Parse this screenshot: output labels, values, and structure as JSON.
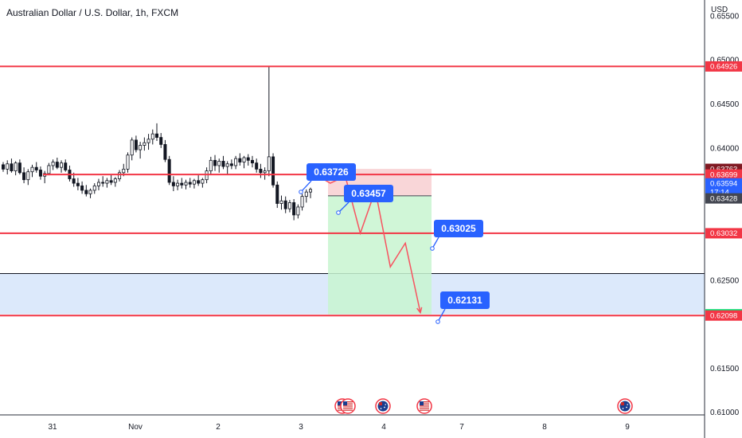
{
  "chart_data": {
    "type": "candlestick",
    "title": "Australian Dollar / U.S. Dollar, 1h, FXCM",
    "currency": "USD",
    "ylim": [
      0.6097,
      0.6568
    ],
    "y_ticks": [
      "0.65500",
      "0.65000",
      "0.64500",
      "0.64000",
      "0.62500",
      "0.61500",
      "0.61000"
    ],
    "x_ticks": [
      "31",
      "Nov",
      "2",
      "3",
      "4",
      "7",
      "8",
      "9"
    ],
    "candles": [
      [
        0.6381,
        0.6384,
        0.6373,
        0.6376
      ],
      [
        0.6376,
        0.6386,
        0.637,
        0.6382
      ],
      [
        0.6382,
        0.6388,
        0.6372,
        0.6374
      ],
      [
        0.6374,
        0.6385,
        0.6369,
        0.6383
      ],
      [
        0.6383,
        0.6387,
        0.637,
        0.6372
      ],
      [
        0.6372,
        0.6378,
        0.636,
        0.6364
      ],
      [
        0.6364,
        0.6376,
        0.6358,
        0.6373
      ],
      [
        0.6373,
        0.6381,
        0.6367,
        0.6378
      ],
      [
        0.6378,
        0.6384,
        0.6372,
        0.6375
      ],
      [
        0.6375,
        0.6379,
        0.6364,
        0.6368
      ],
      [
        0.6368,
        0.6374,
        0.636,
        0.6371
      ],
      [
        0.6371,
        0.6383,
        0.6369,
        0.638
      ],
      [
        0.638,
        0.6387,
        0.6375,
        0.6384
      ],
      [
        0.6384,
        0.6389,
        0.6376,
        0.6378
      ],
      [
        0.6378,
        0.6386,
        0.6372,
        0.6383
      ],
      [
        0.6383,
        0.6387,
        0.6373,
        0.6375
      ],
      [
        0.6375,
        0.638,
        0.6362,
        0.6365
      ],
      [
        0.6365,
        0.6372,
        0.6356,
        0.636
      ],
      [
        0.636,
        0.6366,
        0.6352,
        0.6357
      ],
      [
        0.6357,
        0.6362,
        0.6348,
        0.6352
      ],
      [
        0.6352,
        0.6358,
        0.6345,
        0.6348
      ],
      [
        0.6348,
        0.6354,
        0.6343,
        0.6352
      ],
      [
        0.6352,
        0.636,
        0.6348,
        0.6357
      ],
      [
        0.6357,
        0.6365,
        0.6352,
        0.6361
      ],
      [
        0.6361,
        0.6368,
        0.6356,
        0.636
      ],
      [
        0.636,
        0.6366,
        0.6355,
        0.6363
      ],
      [
        0.6363,
        0.637,
        0.6358,
        0.6361
      ],
      [
        0.6361,
        0.6367,
        0.6356,
        0.6365
      ],
      [
        0.6365,
        0.6375,
        0.6362,
        0.6372
      ],
      [
        0.6372,
        0.6382,
        0.6368,
        0.6376
      ],
      [
        0.6376,
        0.6395,
        0.6372,
        0.6392
      ],
      [
        0.6392,
        0.6412,
        0.6386,
        0.6409
      ],
      [
        0.6409,
        0.6414,
        0.6395,
        0.6398
      ],
      [
        0.6398,
        0.6407,
        0.6388,
        0.6403
      ],
      [
        0.6403,
        0.6412,
        0.6397,
        0.6406
      ],
      [
        0.6406,
        0.6416,
        0.6398,
        0.641
      ],
      [
        0.641,
        0.6421,
        0.6404,
        0.6416
      ],
      [
        0.6416,
        0.6428,
        0.6408,
        0.6412
      ],
      [
        0.6412,
        0.6417,
        0.64,
        0.6404
      ],
      [
        0.6404,
        0.6409,
        0.6384,
        0.6387
      ],
      [
        0.6387,
        0.6391,
        0.6358,
        0.6361
      ],
      [
        0.6361,
        0.6368,
        0.6351,
        0.6357
      ],
      [
        0.6357,
        0.6364,
        0.6352,
        0.636
      ],
      [
        0.636,
        0.6366,
        0.6354,
        0.6358
      ],
      [
        0.6358,
        0.6364,
        0.6353,
        0.6361
      ],
      [
        0.6361,
        0.6366,
        0.6355,
        0.6359
      ],
      [
        0.6359,
        0.6365,
        0.6354,
        0.6363
      ],
      [
        0.6363,
        0.6369,
        0.6357,
        0.636
      ],
      [
        0.636,
        0.6366,
        0.6355,
        0.6364
      ],
      [
        0.6364,
        0.6378,
        0.636,
        0.6374
      ],
      [
        0.6374,
        0.639,
        0.637,
        0.6386
      ],
      [
        0.6386,
        0.6392,
        0.6374,
        0.638
      ],
      [
        0.638,
        0.6388,
        0.6372,
        0.6385
      ],
      [
        0.6385,
        0.6391,
        0.6376,
        0.6379
      ],
      [
        0.6379,
        0.6385,
        0.637,
        0.6382
      ],
      [
        0.6382,
        0.6387,
        0.6376,
        0.638
      ],
      [
        0.638,
        0.6391,
        0.6376,
        0.6388
      ],
      [
        0.6388,
        0.6394,
        0.638,
        0.6384
      ],
      [
        0.6384,
        0.6391,
        0.6377,
        0.6389
      ],
      [
        0.6389,
        0.6393,
        0.638,
        0.6386
      ],
      [
        0.6386,
        0.6391,
        0.6378,
        0.6383
      ],
      [
        0.6383,
        0.6388,
        0.6372,
        0.6376
      ],
      [
        0.6376,
        0.6382,
        0.6366,
        0.6372
      ],
      [
        0.6372,
        0.6378,
        0.6364,
        0.6374
      ],
      [
        0.6374,
        0.6493,
        0.6368,
        0.639
      ],
      [
        0.639,
        0.6394,
        0.6355,
        0.6358
      ],
      [
        0.6358,
        0.6362,
        0.6332,
        0.6337
      ],
      [
        0.6337,
        0.6346,
        0.633,
        0.634
      ],
      [
        0.634,
        0.6345,
        0.6326,
        0.6331
      ],
      [
        0.6331,
        0.6341,
        0.6327,
        0.6338
      ],
      [
        0.6338,
        0.6342,
        0.6318,
        0.6324
      ],
      [
        0.6324,
        0.6336,
        0.632,
        0.6333
      ],
      [
        0.6333,
        0.6348,
        0.6329,
        0.6345
      ],
      [
        0.6345,
        0.6353,
        0.6338,
        0.635
      ],
      [
        0.635,
        0.6355,
        0.6343,
        0.6353
      ]
    ],
    "horizontal_lines": [
      0.64926,
      0.63699,
      0.63032,
      0.62098
    ],
    "zones": {
      "demand_zone": [
        0.62112,
        0.62575
      ],
      "risk_box": [
        0.63457,
        0.63763
      ],
      "reward_box": [
        0.62112,
        0.63457
      ],
      "trade_baseline": 0.63457
    },
    "projection_path": [
      [
        0.63699,
        0
      ],
      [
        0.636,
        1
      ],
      [
        0.6368,
        2
      ],
      [
        0.63032,
        3
      ],
      [
        0.6352,
        4
      ],
      [
        0.6265,
        5
      ],
      [
        0.6292,
        6
      ],
      [
        0.62131,
        7
      ]
    ],
    "callouts": [
      "0.63726",
      "0.63457",
      "0.63025",
      "0.62131"
    ],
    "price_tags": [
      {
        "label": "0.64926",
        "value": 0.64926,
        "color": "#f23645"
      },
      {
        "label": "0.63763",
        "value": 0.63763,
        "color": "#801922"
      },
      {
        "label": "0.63699",
        "value": 0.63699,
        "color": "#f23645"
      },
      {
        "label": "0.63594",
        "value": 0.63594,
        "color": "#2962ff",
        "sub": "17:14"
      },
      {
        "label": "0.63428",
        "value": 0.63428,
        "color": "#434651"
      },
      {
        "label": "0.63032",
        "value": 0.63032,
        "color": "#f23645"
      },
      {
        "label": "0.62112",
        "value": 0.62112,
        "color": "#00e676",
        "dark": true
      },
      {
        "label": "0.62098",
        "value": 0.62098,
        "color": "#f23645"
      }
    ],
    "event_flags": [
      "us-flag",
      "us-flag",
      "au-flag",
      "us-flag",
      "au-flag"
    ],
    "colors": {
      "candle": "#131722",
      "level_line": "#f23645",
      "projection": "#f7525f",
      "callout": "#2962ff",
      "zone": "#dce9fb",
      "risk": "#f9d6d8",
      "reward": "#c8f5d0"
    }
  }
}
